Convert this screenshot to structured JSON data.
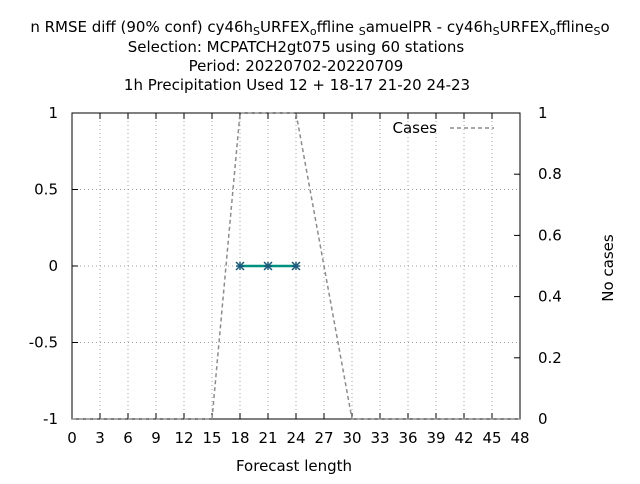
{
  "chart_data": {
    "type": "line",
    "title": {
      "line1_parts": [
        {
          "text": "n RMSE diff (90% conf) cy46h",
          "sub": false
        },
        {
          "text": "S",
          "sub": true
        },
        {
          "text": "URFEX",
          "sub": false
        },
        {
          "text": "o",
          "sub": true
        },
        {
          "text": "ffline ",
          "sub": false
        },
        {
          "text": "S",
          "sub": true
        },
        {
          "text": "amuelPR - cy46h",
          "sub": false
        },
        {
          "text": "S",
          "sub": true
        },
        {
          "text": "URFEX",
          "sub": false
        },
        {
          "text": "o",
          "sub": true
        },
        {
          "text": "ffline",
          "sub": false
        },
        {
          "text": "S",
          "sub": true
        },
        {
          "text": "o",
          "sub": false
        }
      ],
      "line2": "Selection: MCPATCH2gt075 using    60 stations",
      "line3": "Period: 20220702-20220709",
      "line4": "1h Precipitation   Used  12 + 18-17 21-20 24-23"
    },
    "xlabel": "Forecast length",
    "ylabel": "",
    "y2label": "No cases",
    "xlim": [
      0,
      48
    ],
    "ylim": [
      -1,
      1
    ],
    "y2lim": [
      0,
      1
    ],
    "xticks": [
      0,
      3,
      6,
      9,
      12,
      15,
      18,
      21,
      24,
      27,
      30,
      33,
      36,
      39,
      42,
      45,
      48
    ],
    "yticks": [
      -1,
      -0.5,
      0,
      0.5,
      1
    ],
    "ytick_labels": [
      "-1",
      "-0.5",
      "0",
      "0.5",
      "1"
    ],
    "y2ticks": [
      0,
      0.2,
      0.4,
      0.6,
      0.8,
      1
    ],
    "y2tick_labels": [
      "0",
      "0.2",
      "0.4",
      "0.6",
      "0.8",
      "1"
    ],
    "grid": true,
    "legend": {
      "position": "top-right",
      "entries": [
        "Cases"
      ]
    },
    "series": [
      {
        "name": "Cases",
        "axis": "y2",
        "style": "dashed",
        "color": "#8c8c8c",
        "x": [
          0,
          3,
          6,
          9,
          12,
          15,
          18,
          21,
          24,
          27,
          30,
          33,
          36,
          39,
          42,
          45,
          48
        ],
        "y": [
          0,
          0,
          0,
          0,
          0,
          0,
          1,
          1,
          1,
          0.5,
          0,
          0,
          0,
          0,
          0,
          0,
          0
        ]
      },
      {
        "axis": "y",
        "style": "solid-markers",
        "color": "#00907f",
        "marker_color": "#1a5a7a",
        "x": [
          18,
          21,
          24
        ],
        "y": [
          0,
          0,
          0
        ],
        "error_low": [
          0,
          0,
          0
        ],
        "error_high": [
          0,
          0,
          0
        ]
      }
    ]
  }
}
